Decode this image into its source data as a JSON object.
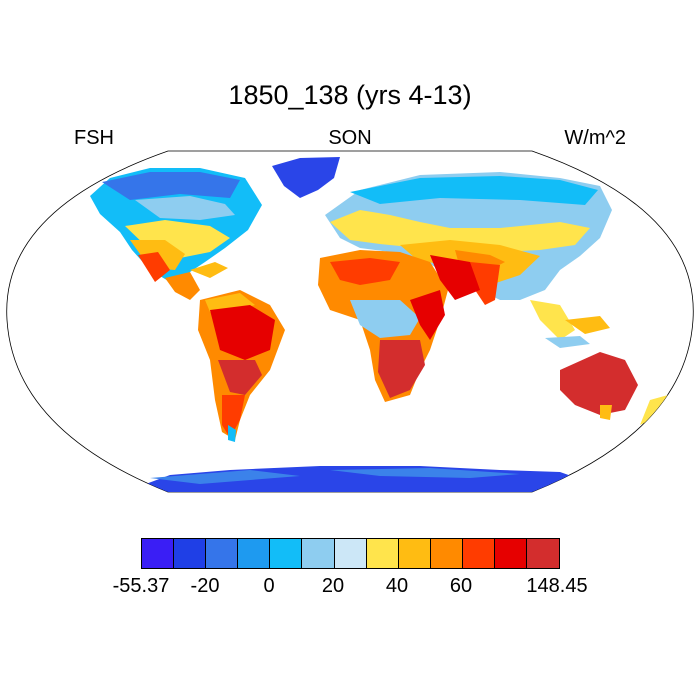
{
  "title": "1850_138 (yrs 4-13)",
  "header": {
    "left": "FSH",
    "center": "SON",
    "right": "W/m^2"
  },
  "colorbar": {
    "colors": [
      "#3a1ef5",
      "#1f3fe6",
      "#3575ea",
      "#1e9af0",
      "#12bdf8",
      "#8ecdf0",
      "#cce7f7",
      "#ffe44c",
      "#ffbc12",
      "#ff8a00",
      "#ff3c00",
      "#e60000",
      "#d32d2d"
    ],
    "labels": [
      "-55.37",
      "-20",
      "0",
      "20",
      "40",
      "60",
      "148.45"
    ]
  },
  "map": {
    "projection": "Robinson",
    "regions": [
      "north-america",
      "greenland",
      "south-america",
      "europe-asia",
      "africa",
      "arabian-peninsula",
      "india",
      "southeast-asia",
      "australia",
      "new-zealand",
      "antarctica"
    ]
  }
}
